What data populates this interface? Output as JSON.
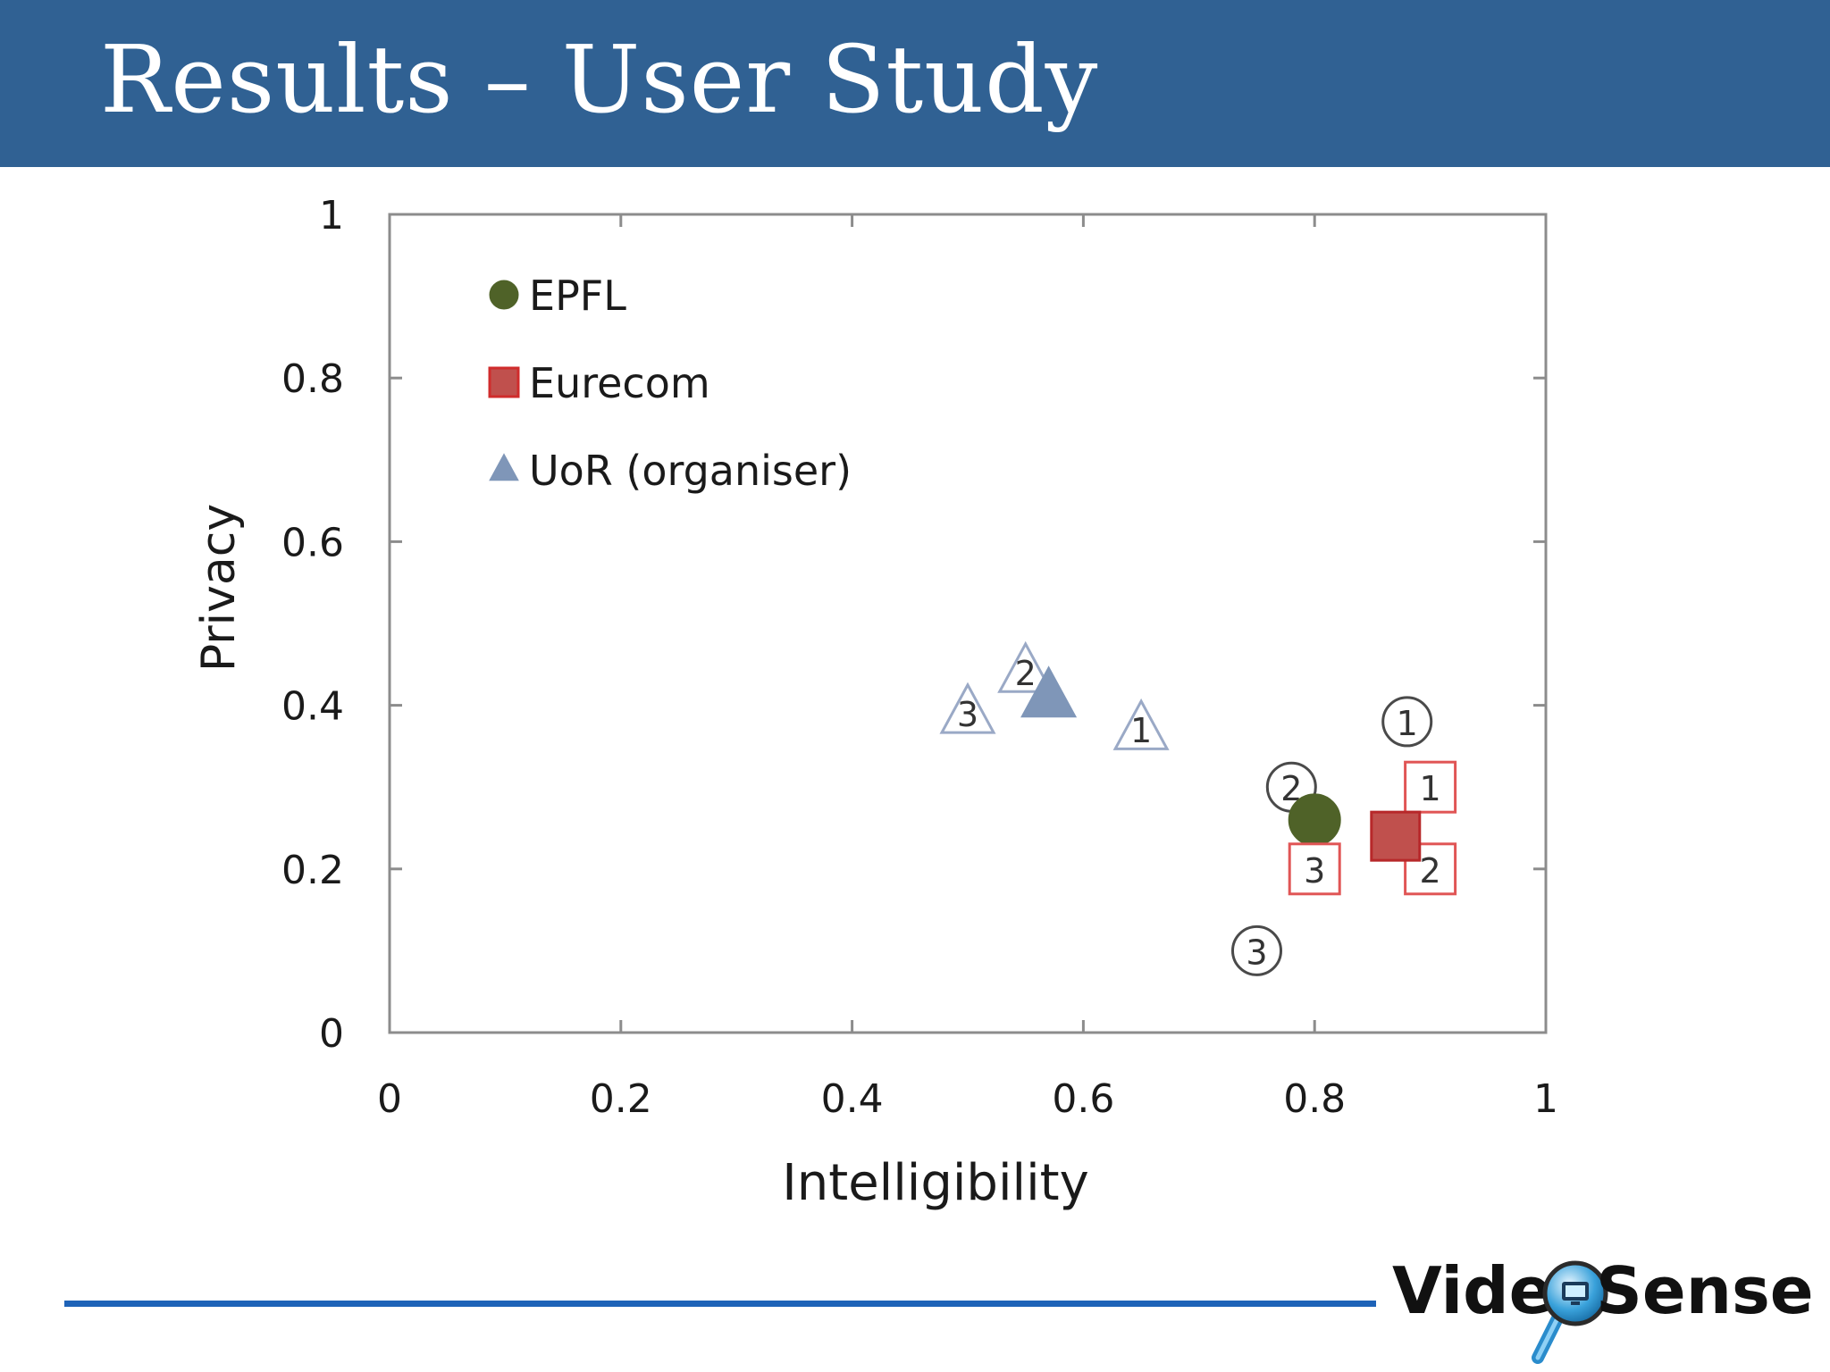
{
  "slide": {
    "title": "Results – User Study"
  },
  "brand": {
    "logo_text": "VideoSense",
    "part1": "Vide",
    "part2": "Sense",
    "icon": "magnifier-monitor-icon"
  },
  "chart_data": {
    "type": "scatter",
    "xlabel": "Intelligibility",
    "ylabel": "Privacy",
    "xlim": [
      0,
      1
    ],
    "ylim": [
      0,
      1
    ],
    "xticks": [
      "0",
      "0.2",
      "0.4",
      "0.6",
      "0.8",
      "1"
    ],
    "yticks": [
      "0",
      "0.2",
      "0.4",
      "0.6",
      "0.8",
      "1"
    ],
    "grid": false,
    "legend_position": "top-left",
    "series": [
      {
        "name": "EPFL",
        "marker": "circle",
        "color": "#4f6228",
        "mean": {
          "x": 0.8,
          "y": 0.26
        },
        "points": [
          {
            "label": "1",
            "x": 0.88,
            "y": 0.38
          },
          {
            "label": "2",
            "x": 0.78,
            "y": 0.3
          },
          {
            "label": "3",
            "x": 0.75,
            "y": 0.1
          }
        ]
      },
      {
        "name": "Eurecom",
        "marker": "square",
        "color": "#c0504d",
        "mean": {
          "x": 0.87,
          "y": 0.24
        },
        "points": [
          {
            "label": "1",
            "x": 0.9,
            "y": 0.3
          },
          {
            "label": "2",
            "x": 0.9,
            "y": 0.2
          },
          {
            "label": "3",
            "x": 0.8,
            "y": 0.2
          }
        ]
      },
      {
        "name": "UoR (organiser)",
        "marker": "triangle",
        "color": "#7f96b8",
        "mean": {
          "x": 0.57,
          "y": 0.41
        },
        "points": [
          {
            "label": "1",
            "x": 0.65,
            "y": 0.37
          },
          {
            "label": "2",
            "x": 0.55,
            "y": 0.44
          },
          {
            "label": "3",
            "x": 0.5,
            "y": 0.39
          }
        ]
      }
    ]
  }
}
